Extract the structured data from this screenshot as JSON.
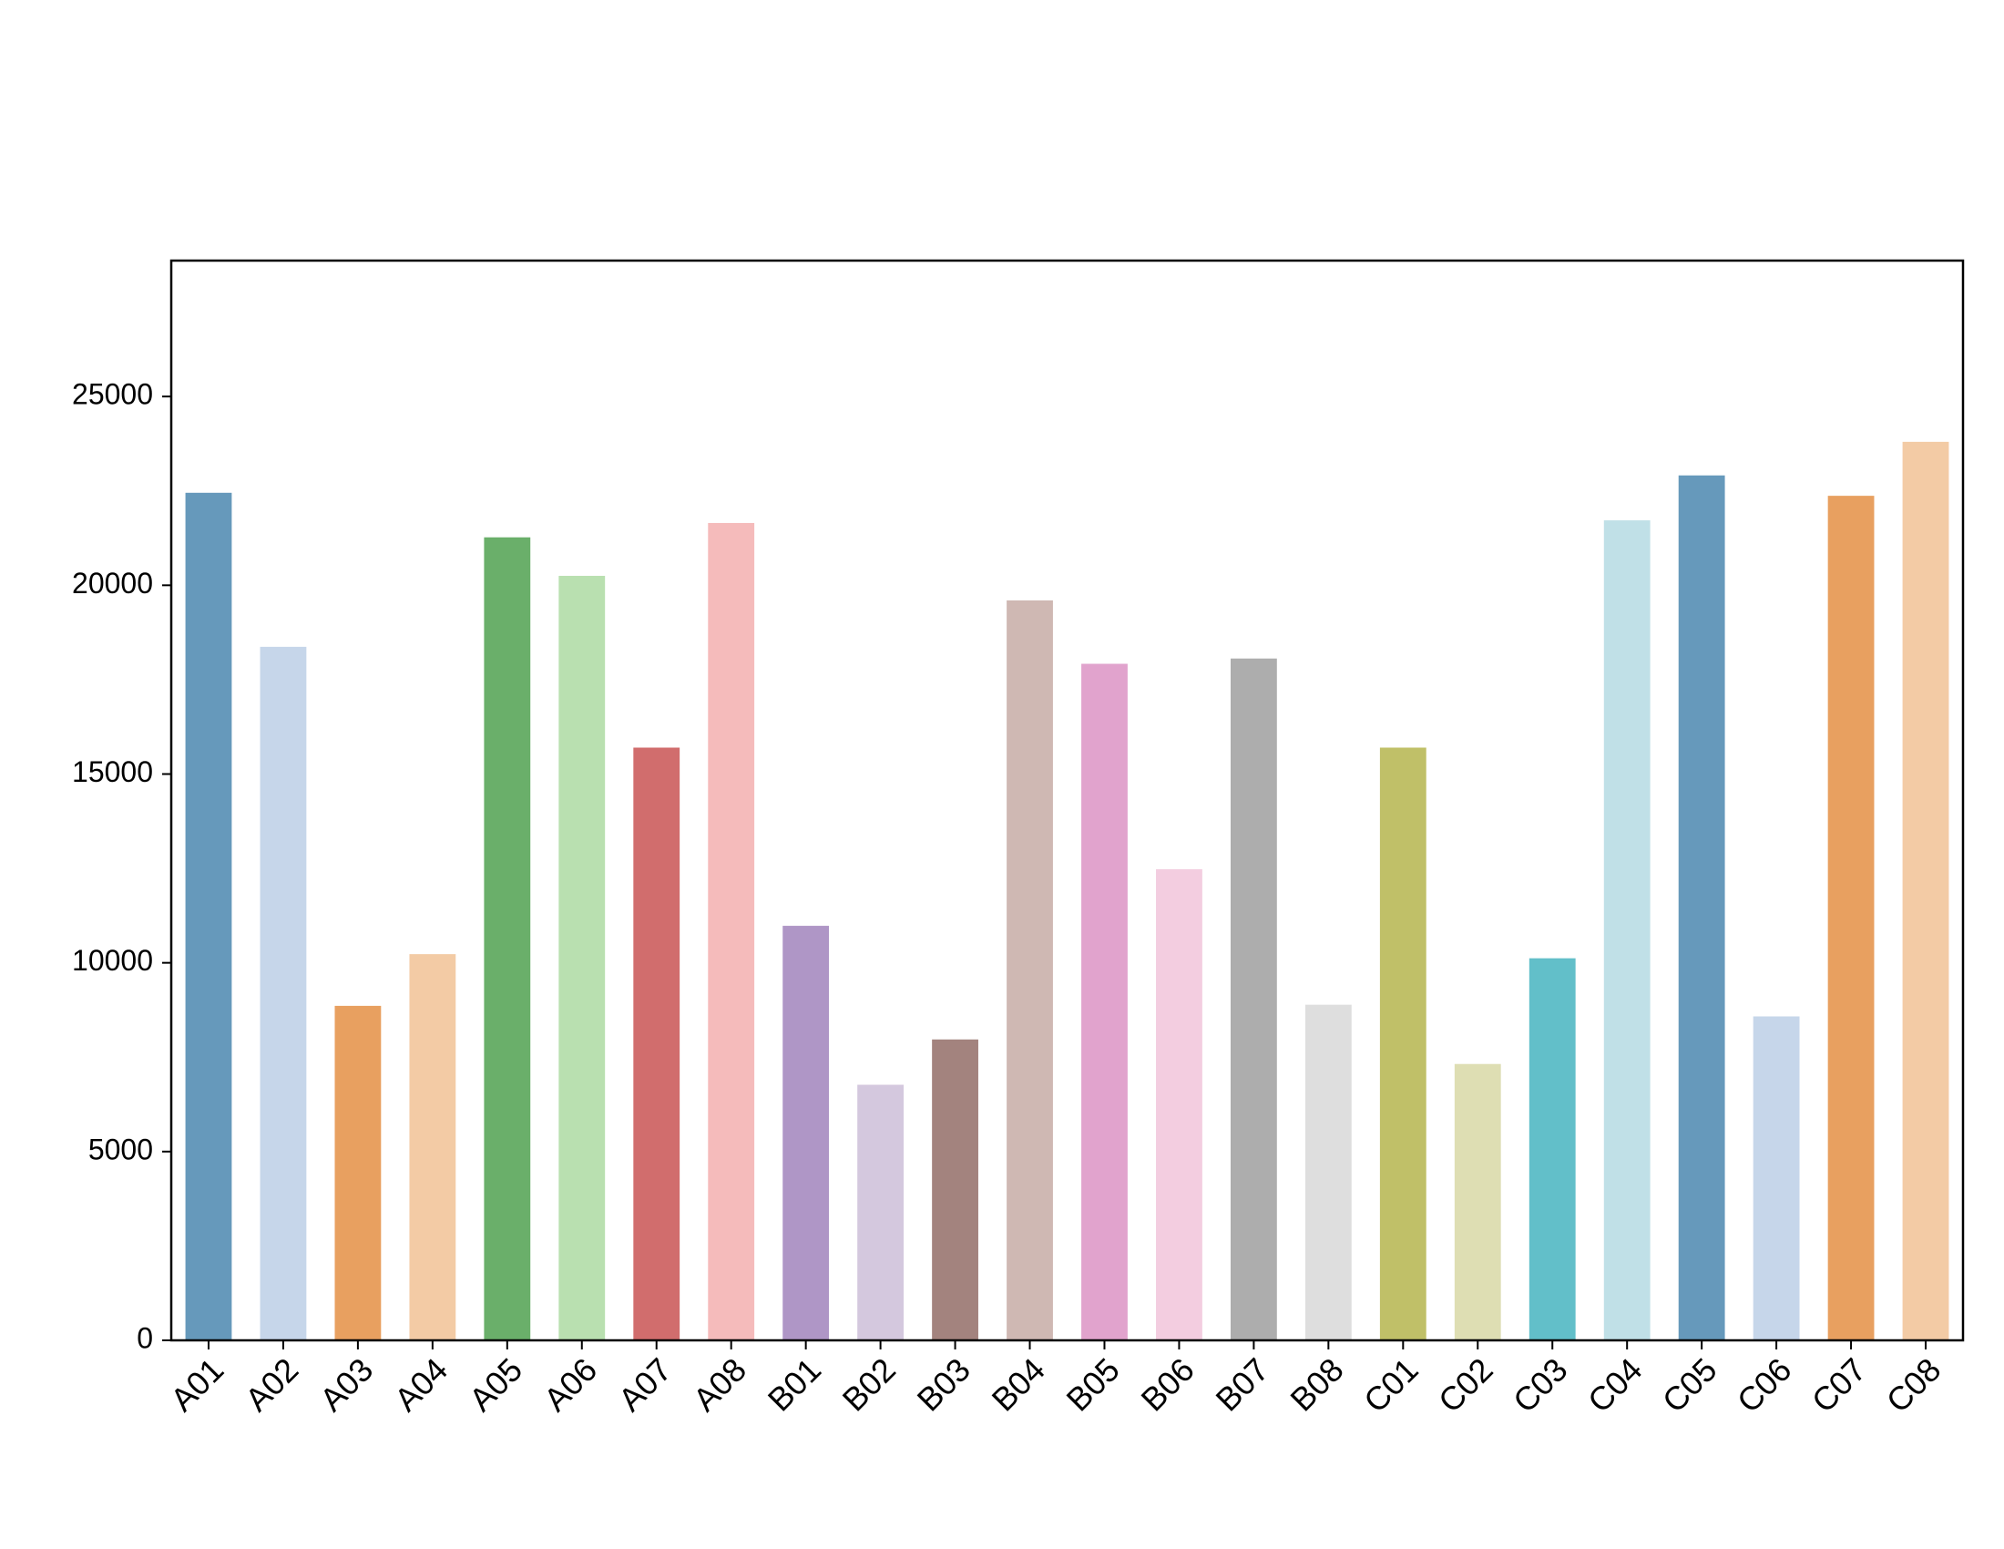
{
  "chart_data": {
    "type": "bar",
    "categories": [
      "A01",
      "A02",
      "A03",
      "A04",
      "A05",
      "A06",
      "A07",
      "A08",
      "B01",
      "B02",
      "B03",
      "B04",
      "B05",
      "B06",
      "B07",
      "B08",
      "C01",
      "C02",
      "C03",
      "C04",
      "C05",
      "C06",
      "C07",
      "C08"
    ],
    "values": [
      22450,
      18370,
      8860,
      10230,
      21270,
      20250,
      15700,
      21650,
      10980,
      6770,
      7970,
      19600,
      17920,
      12480,
      18060,
      8890,
      15700,
      7320,
      10120,
      21720,
      22910,
      8580,
      22370,
      23800
    ],
    "colors": [
      "#6699bb",
      "#c6d6ea",
      "#e8a060",
      "#f3cba5",
      "#6aaf6a",
      "#b9e0b0",
      "#d16d6d",
      "#f5bbbb",
      "#af96c6",
      "#d4c8de",
      "#a3837e",
      "#cfb8b3",
      "#e1a3cd",
      "#f3cde0",
      "#adadad",
      "#dedede",
      "#c0c068",
      "#dedeb3",
      "#62bfc9",
      "#c0e0e7",
      "#6699bb",
      "#c6d6ea",
      "#e8a060",
      "#f3cba5"
    ],
    "ylim": [
      0,
      28600
    ],
    "yticks": [
      0,
      5000,
      10000,
      15000,
      20000,
      25000
    ],
    "grid": false
  }
}
